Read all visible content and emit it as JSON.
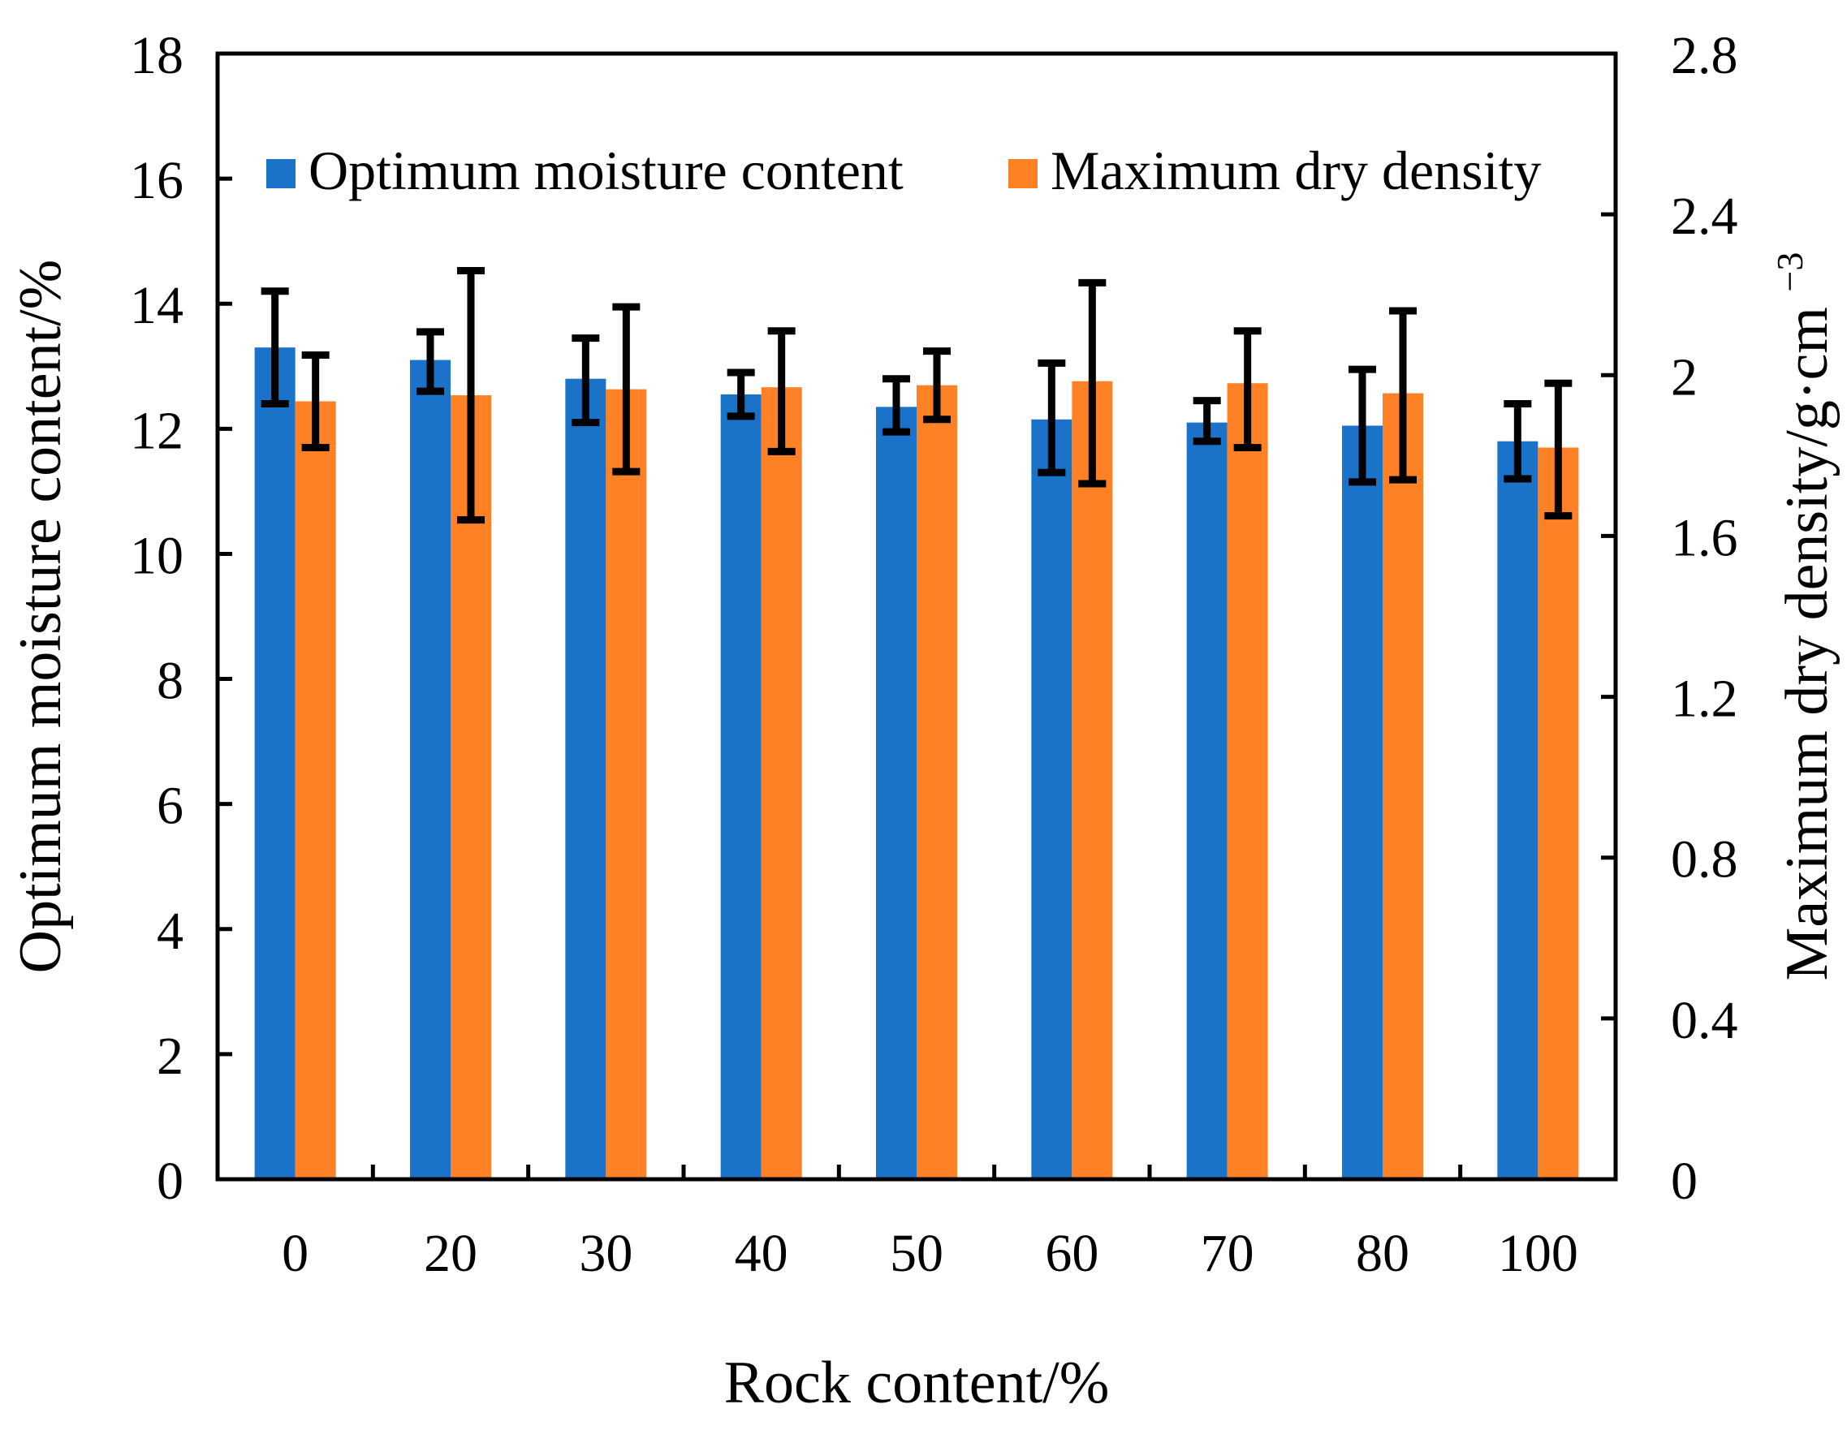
{
  "chart_data": {
    "type": "bar",
    "x_title": "Rock content/%",
    "y_left_title": "Optimum moisture content/%",
    "y_right_title_main": "Maximum dry density/g·cm",
    "y_right_title_sup": "−3",
    "categories": [
      "0",
      "20",
      "30",
      "40",
      "50",
      "60",
      "70",
      "80",
      "100"
    ],
    "y_left": {
      "min": 0,
      "max": 18,
      "step": 2,
      "tick_labels": [
        "0",
        "2",
        "4",
        "6",
        "8",
        "10",
        "12",
        "14",
        "16",
        "18"
      ]
    },
    "y_right": {
      "min": 0,
      "max": 2.8,
      "step": 0.4,
      "tick_labels": [
        "0",
        "0.4",
        "0.8",
        "1.2",
        "1.6",
        "2",
        "2.4",
        "2.8"
      ]
    },
    "legend_position": "top",
    "series": [
      {
        "name": "Optimum moisture content",
        "axis": "left",
        "color": "#1a73c8",
        "values": [
          13.3,
          13.1,
          12.8,
          12.55,
          12.35,
          12.15,
          12.1,
          12.05,
          11.8
        ],
        "error_low": [
          12.4,
          12.6,
          12.1,
          12.2,
          11.95,
          11.3,
          11.8,
          11.15,
          11.2
        ],
        "error_high": [
          14.2,
          13.55,
          13.45,
          12.9,
          12.8,
          13.05,
          12.45,
          12.95,
          12.4
        ]
      },
      {
        "name": "Maximum dry density",
        "axis": "right",
        "color": "#fe8126",
        "values": [
          1.935,
          1.95,
          1.965,
          1.97,
          1.975,
          1.985,
          1.98,
          1.955,
          1.82
        ],
        "error_low": [
          1.82,
          1.64,
          1.76,
          1.81,
          1.89,
          1.73,
          1.82,
          1.74,
          1.65
        ],
        "error_high": [
          2.05,
          2.26,
          2.17,
          2.11,
          2.06,
          2.23,
          2.11,
          2.16,
          1.98
        ]
      }
    ]
  }
}
